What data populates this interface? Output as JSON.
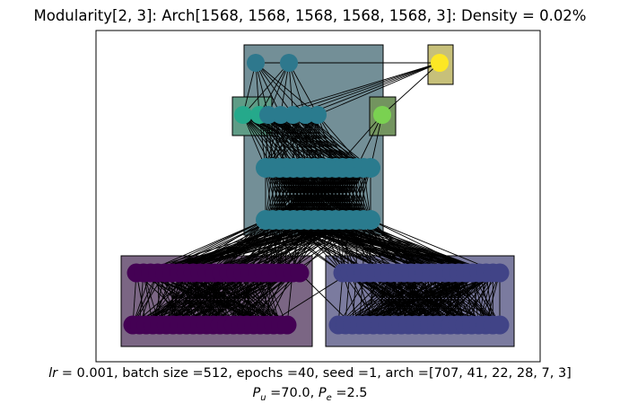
{
  "title": "Modularity[2, 3]: Arch[1568, 1568, 1568, 1568, 1568, 3]: Density = 0.02%",
  "caption": {
    "lr_symbol": "lr",
    "line1_rest": " =  0.001, batch size =512, epochs =40, seed =1, arch =[707, 41, 22, 28, 7, 3]",
    "pu_symbol": "P",
    "pu_sub": "u",
    "pu_value": " =70.0, ",
    "pe_symbol": "P",
    "pe_sub": "e",
    "pe_value": " =2.5"
  },
  "colors": {
    "module_teal": "#738f97",
    "module_green_left": "#5f9c86",
    "module_green_right": "#73945f",
    "module_yellow": "#c7c07a",
    "module_purple": "#7b6684",
    "module_indigo": "#7b7b9f",
    "node_top": "#2e788d",
    "node_mid_green": "#25a98b",
    "node_teal": "#2a7b8e",
    "node_lime": "#7ad151",
    "node_yellow": "#fde725",
    "node_purple": "#440154",
    "node_indigo": "#414487",
    "edge": "#000000"
  }
}
